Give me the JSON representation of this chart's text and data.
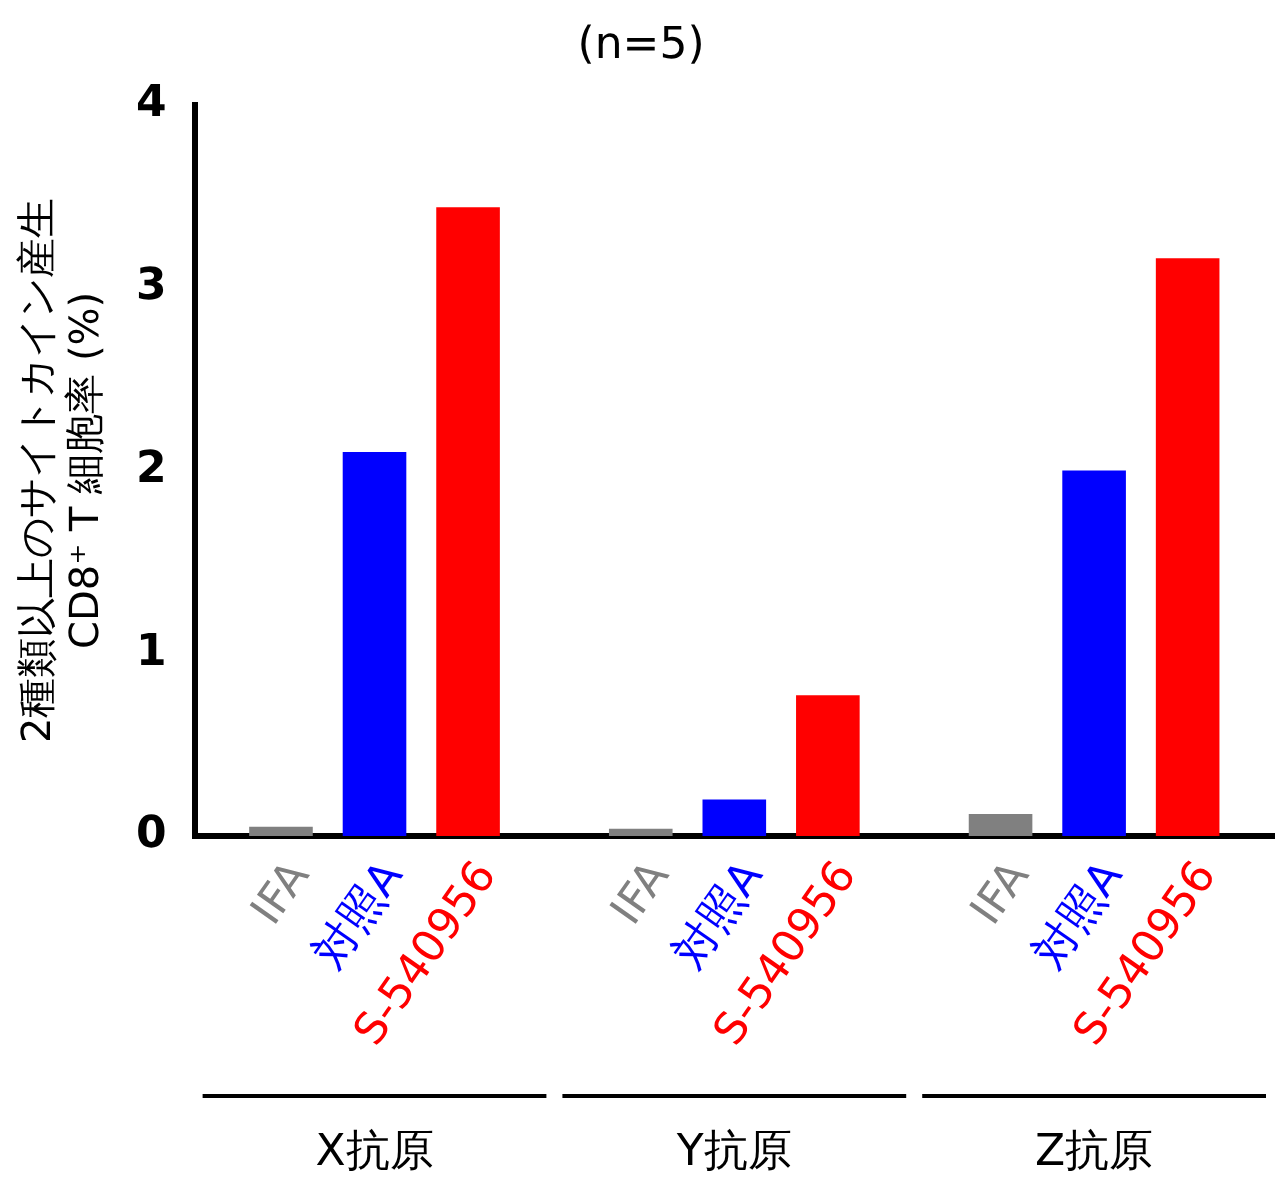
{
  "chart_data": {
    "type": "bar",
    "title": "(n=5)",
    "ylabel": "2種類以上のサイトカイン産生\nCD8⁺ T 細胞率 (%)",
    "categories": [
      "X抗原",
      "Y抗原",
      "Z抗原"
    ],
    "series": [
      {
        "name": "IFA",
        "color": "#808080",
        "values": [
          0.05,
          0.04,
          0.12
        ]
      },
      {
        "name": "対照A",
        "color": "#0000ff",
        "values": [
          2.1,
          0.2,
          2.0
        ]
      },
      {
        "name": "S-540956",
        "color": "#ff0000",
        "values": [
          3.44,
          0.77,
          3.16
        ]
      }
    ],
    "ylim": [
      0,
      4
    ],
    "yticks": [
      0,
      1,
      2,
      3,
      4
    ],
    "grid": false,
    "legend": false
  }
}
